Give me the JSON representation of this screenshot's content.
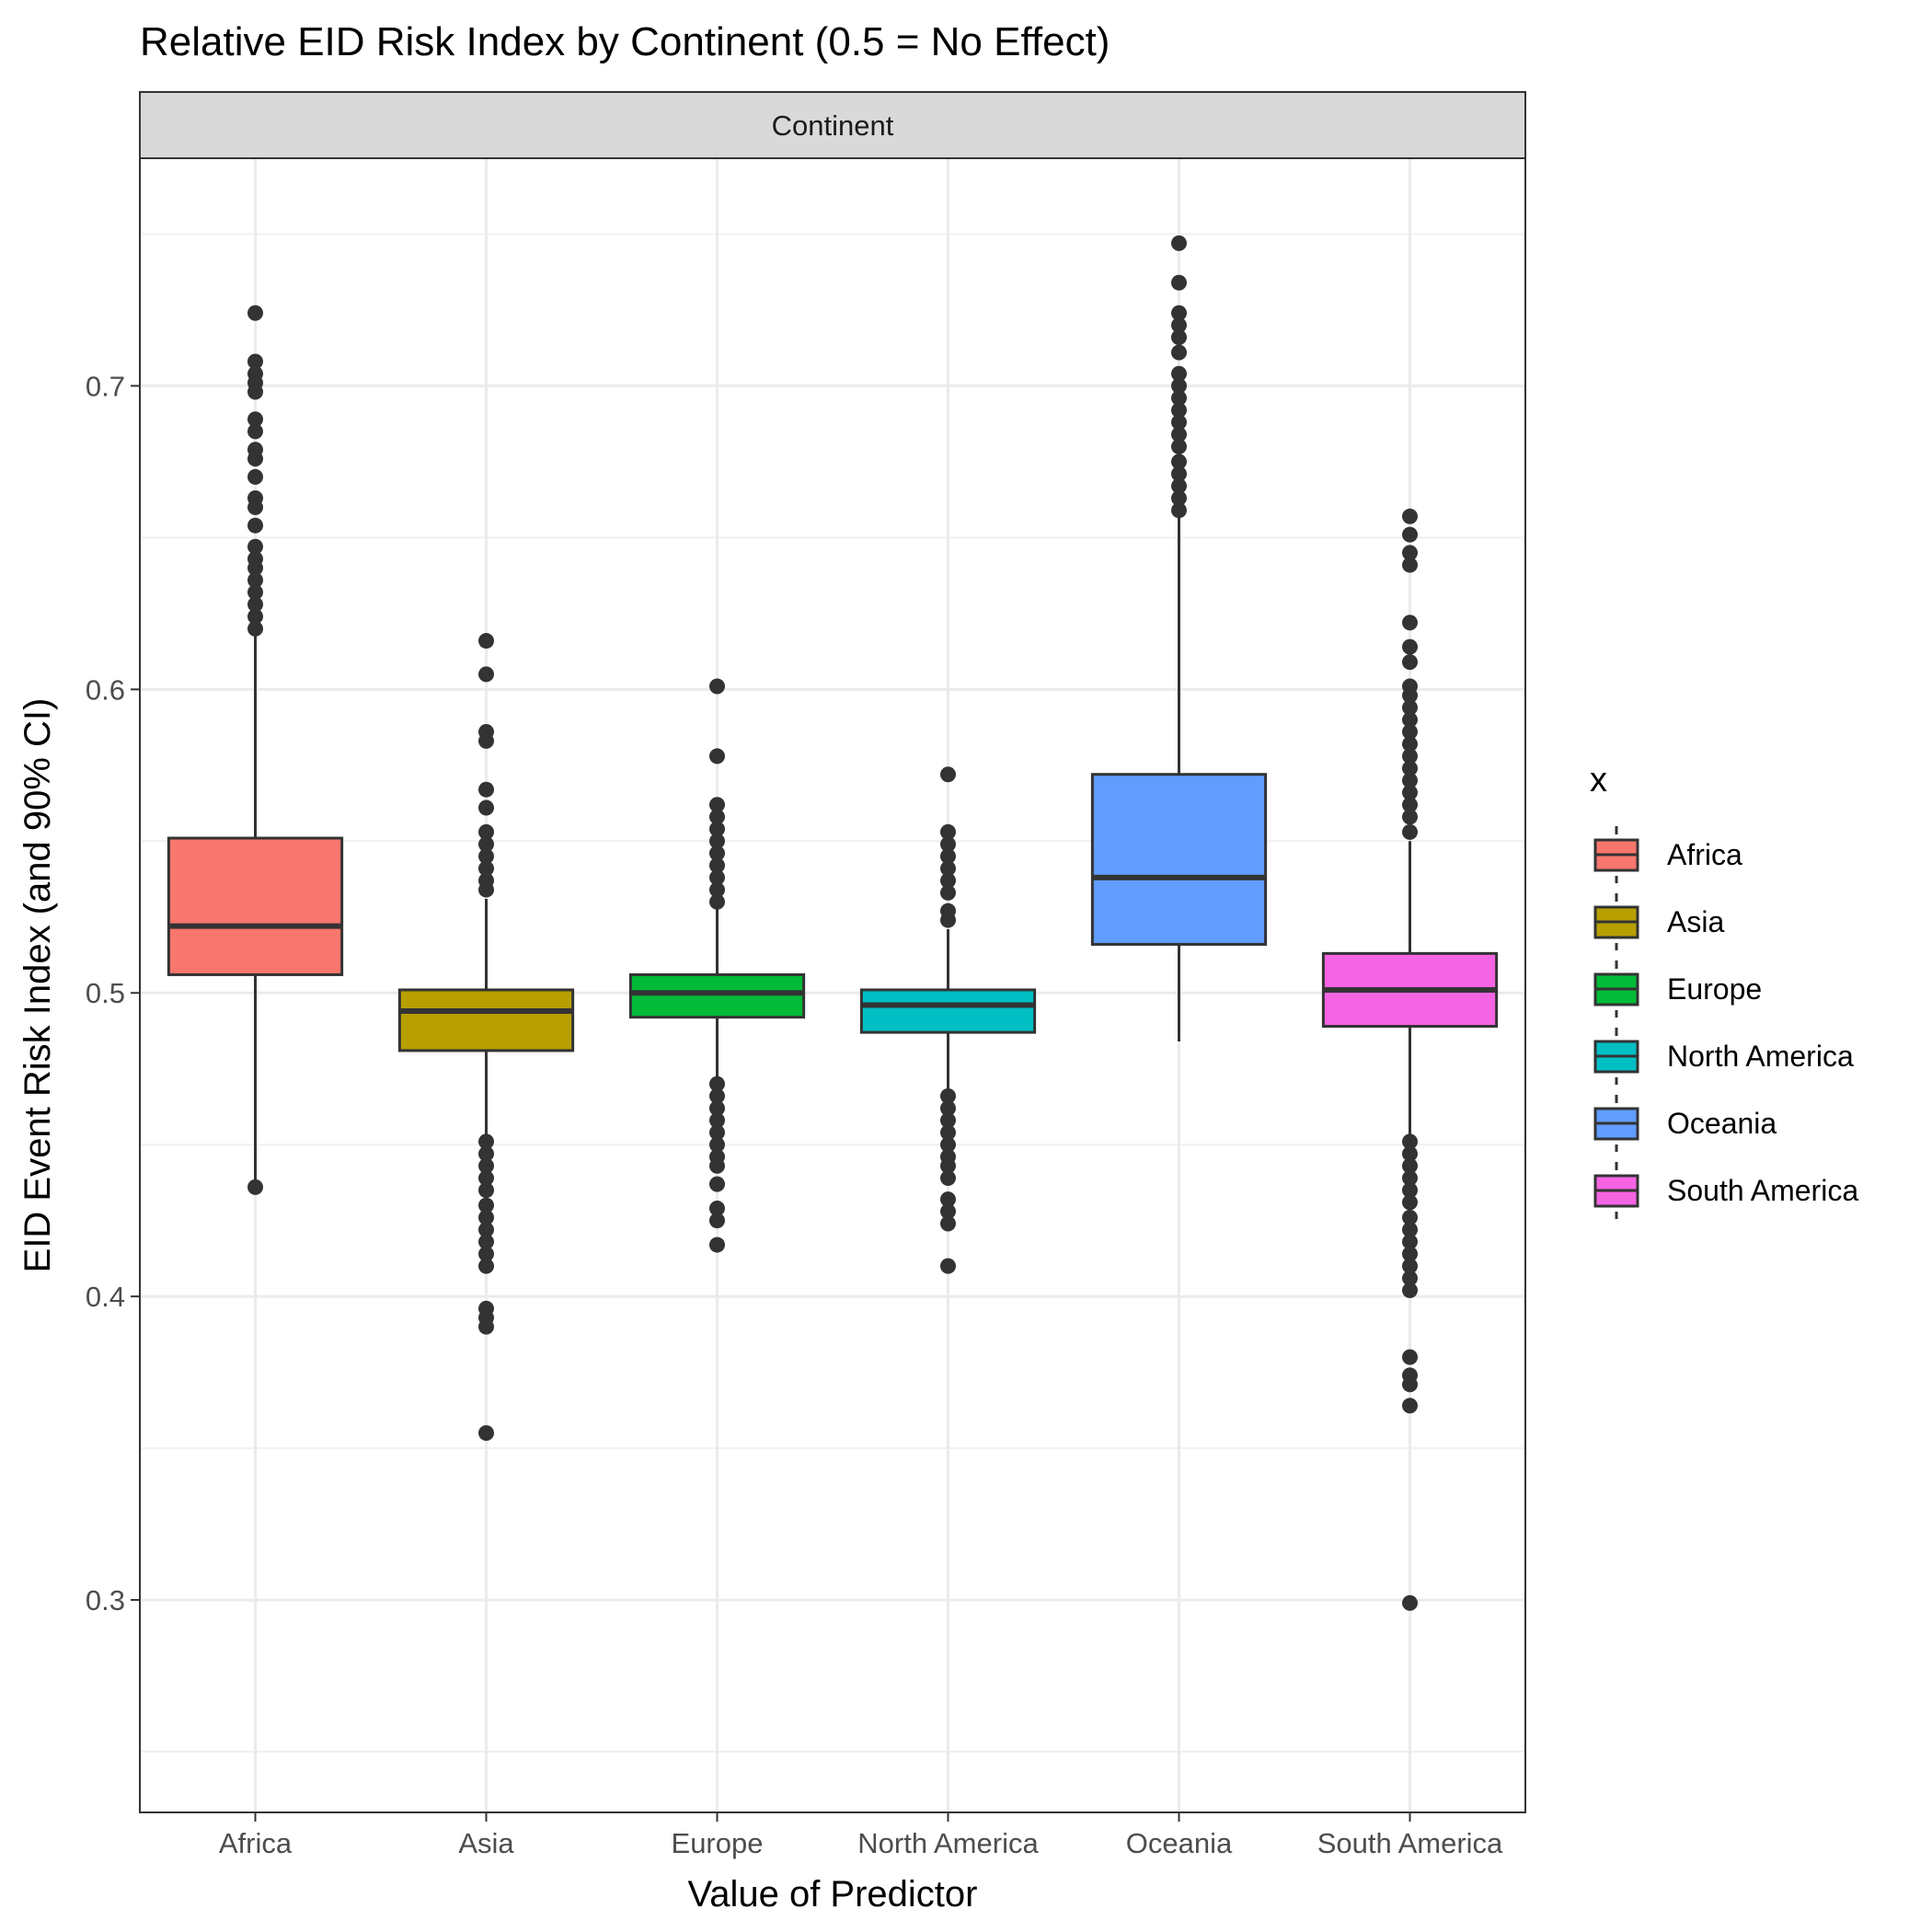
{
  "chart_data": {
    "type": "boxplot",
    "title": "Relative EID Risk Index by Continent (0.5 = No Effect)",
    "facet_label": "Continent",
    "xlabel": "Value of Predictor",
    "ylabel": "EID Event Risk Index (and 90% CI)",
    "ylim": [
      0.23,
      0.775
    ],
    "y_ticks": [
      0.3,
      0.4,
      0.5,
      0.6,
      0.7
    ],
    "y_tick_labels": [
      "0.3",
      "0.4",
      "0.5",
      "0.6",
      "0.7"
    ],
    "grid": true,
    "legend": {
      "title": "x",
      "position": "right"
    },
    "categories": [
      "Africa",
      "Asia",
      "Europe",
      "North America",
      "Oceania",
      "South America"
    ],
    "series": [
      {
        "name": "Africa",
        "color": "#F8766D",
        "q1": 0.506,
        "median": 0.522,
        "q3": 0.551,
        "whisker_low": 0.437,
        "whisker_high": 0.619,
        "outliers": [
          0.724,
          0.708,
          0.704,
          0.701,
          0.698,
          0.689,
          0.685,
          0.679,
          0.676,
          0.67,
          0.663,
          0.66,
          0.654,
          0.647,
          0.643,
          0.64,
          0.636,
          0.632,
          0.628,
          0.624,
          0.62,
          0.436
        ]
      },
      {
        "name": "Asia",
        "color": "#B79F00",
        "q1": 0.481,
        "median": 0.494,
        "q3": 0.501,
        "whisker_low": 0.451,
        "whisker_high": 0.531,
        "outliers": [
          0.616,
          0.605,
          0.586,
          0.583,
          0.567,
          0.561,
          0.553,
          0.549,
          0.545,
          0.541,
          0.537,
          0.534,
          0.451,
          0.447,
          0.443,
          0.439,
          0.435,
          0.43,
          0.426,
          0.422,
          0.418,
          0.414,
          0.41,
          0.396,
          0.393,
          0.39,
          0.355
        ]
      },
      {
        "name": "Europe",
        "color": "#00BA38",
        "q1": 0.492,
        "median": 0.5,
        "q3": 0.506,
        "whisker_low": 0.47,
        "whisker_high": 0.528,
        "outliers": [
          0.601,
          0.578,
          0.562,
          0.558,
          0.554,
          0.55,
          0.546,
          0.542,
          0.538,
          0.534,
          0.53,
          0.47,
          0.466,
          0.462,
          0.458,
          0.454,
          0.45,
          0.446,
          0.443,
          0.437,
          0.429,
          0.425,
          0.417
        ]
      },
      {
        "name": "North America",
        "color": "#00BFC4",
        "q1": 0.487,
        "median": 0.496,
        "q3": 0.501,
        "whisker_low": 0.466,
        "whisker_high": 0.521,
        "outliers": [
          0.572,
          0.553,
          0.549,
          0.545,
          0.541,
          0.537,
          0.533,
          0.527,
          0.524,
          0.466,
          0.462,
          0.458,
          0.454,
          0.45,
          0.446,
          0.443,
          0.439,
          0.432,
          0.428,
          0.424,
          0.41
        ]
      },
      {
        "name": "Oceania",
        "color": "#619CFF",
        "q1": 0.516,
        "median": 0.538,
        "q3": 0.572,
        "whisker_low": 0.484,
        "whisker_high": 0.657,
        "outliers": [
          0.747,
          0.734,
          0.724,
          0.72,
          0.716,
          0.711,
          0.704,
          0.7,
          0.696,
          0.692,
          0.688,
          0.684,
          0.68,
          0.675,
          0.671,
          0.667,
          0.663,
          0.659
        ]
      },
      {
        "name": "South America",
        "color": "#F564E3",
        "q1": 0.489,
        "median": 0.501,
        "q3": 0.513,
        "whisker_low": 0.452,
        "whisker_high": 0.55,
        "outliers": [
          0.657,
          0.651,
          0.645,
          0.641,
          0.622,
          0.614,
          0.609,
          0.601,
          0.598,
          0.594,
          0.59,
          0.586,
          0.582,
          0.578,
          0.574,
          0.57,
          0.566,
          0.562,
          0.558,
          0.553,
          0.451,
          0.447,
          0.443,
          0.439,
          0.435,
          0.431,
          0.426,
          0.422,
          0.418,
          0.414,
          0.41,
          0.406,
          0.402,
          0.38,
          0.374,
          0.371,
          0.364,
          0.299
        ]
      }
    ]
  }
}
